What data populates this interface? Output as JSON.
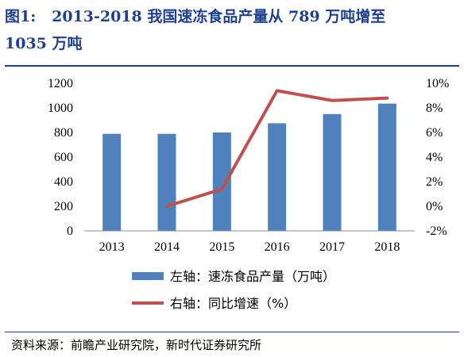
{
  "title": {
    "figure_label": "图1:",
    "text_line1": "2013-2018 我国速冻食品产量从 789 万吨增至",
    "text_line2": "1035 万吨"
  },
  "source": "资料来源：前瞻产业研究院，新时代证券研究所",
  "chart_data": {
    "type": "bar+line",
    "categories": [
      "2013",
      "2014",
      "2015",
      "2016",
      "2017",
      "2018"
    ],
    "series": [
      {
        "name": "左轴：速冻食品产量（万吨）",
        "type": "bar",
        "axis": "left",
        "color": "#4f81bd",
        "values": [
          789,
          789,
          800,
          875,
          950,
          1035
        ]
      },
      {
        "name": "右轴：同比增速（%）",
        "type": "line",
        "axis": "right",
        "color": "#c0504d",
        "values": [
          null,
          0.0,
          1.4,
          9.4,
          8.6,
          8.8
        ]
      }
    ],
    "y_left": {
      "ylim": [
        0,
        1200
      ],
      "ticks": [
        "0",
        "200",
        "400",
        "600",
        "800",
        "1000",
        "1200"
      ]
    },
    "y_right": {
      "ylim": [
        -2,
        10
      ],
      "ticks": [
        "-2%",
        "0%",
        "2%",
        "4%",
        "6%",
        "8%",
        "10%"
      ]
    },
    "grid": false,
    "legend_position": "bottom"
  }
}
